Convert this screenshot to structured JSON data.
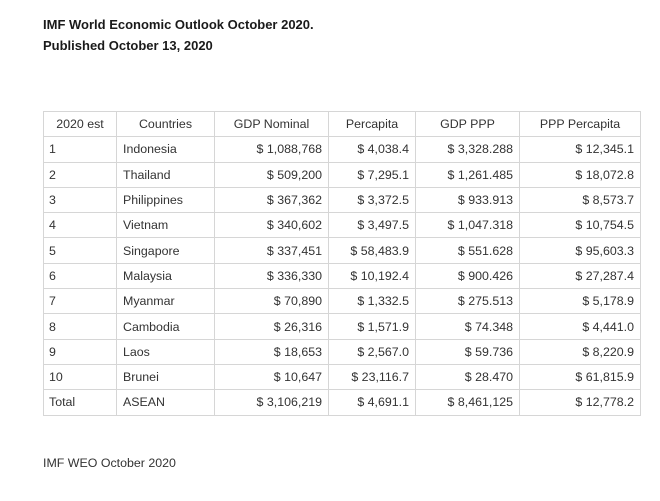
{
  "header": {
    "title": "IMF World Economic Outlook October 2020.",
    "subtitle": "Published October 13, 2020"
  },
  "table": {
    "columns": [
      "2020 est",
      "Countries",
      "GDP Nominal",
      "Percapita",
      "GDP PPP",
      "PPP Percapita"
    ],
    "rows": [
      [
        "1",
        "Indonesia",
        "$ 1,088,768",
        "$ 4,038.4",
        "$ 3,328.288",
        "$ 12,345.1"
      ],
      [
        "2",
        "Thailand",
        "$ 509,200",
        "$ 7,295.1",
        "$ 1,261.485",
        "$ 18,072.8"
      ],
      [
        "3",
        "Philippines",
        "$ 367,362",
        "$ 3,372.5",
        "$ 933.913",
        "$ 8,573.7"
      ],
      [
        "4",
        "Vietnam",
        "$ 340,602",
        "$ 3,497.5",
        "$ 1,047.318",
        "$ 10,754.5"
      ],
      [
        "5",
        "Singapore",
        "$ 337,451",
        "$ 58,483.9",
        "$ 551.628",
        "$ 95,603.3"
      ],
      [
        "6",
        "Malaysia",
        "$ 336,330",
        "$ 10,192.4",
        "$ 900.426",
        "$ 27,287.4"
      ],
      [
        "7",
        "Myanmar",
        "$ 70,890",
        "$ 1,332.5",
        "$ 275.513",
        "$ 5,178.9"
      ],
      [
        "8",
        "Cambodia",
        "$ 26,316",
        "$ 1,571.9",
        "$ 74.348",
        "$ 4,441.0"
      ],
      [
        "9",
        "Laos",
        "$ 18,653",
        "$ 2,567.0",
        "$ 59.736",
        "$ 8,220.9"
      ],
      [
        "10",
        "Brunei",
        "$ 10,647",
        "$ 23,116.7",
        "$ 28.470",
        "$ 61,815.9"
      ],
      [
        "Total",
        "ASEAN",
        "$ 3,106,219",
        "$ 4,691.1",
        "$ 8,461,125",
        "$ 12,778.2"
      ]
    ]
  },
  "footer": {
    "source": "IMF WEO October 2020"
  }
}
